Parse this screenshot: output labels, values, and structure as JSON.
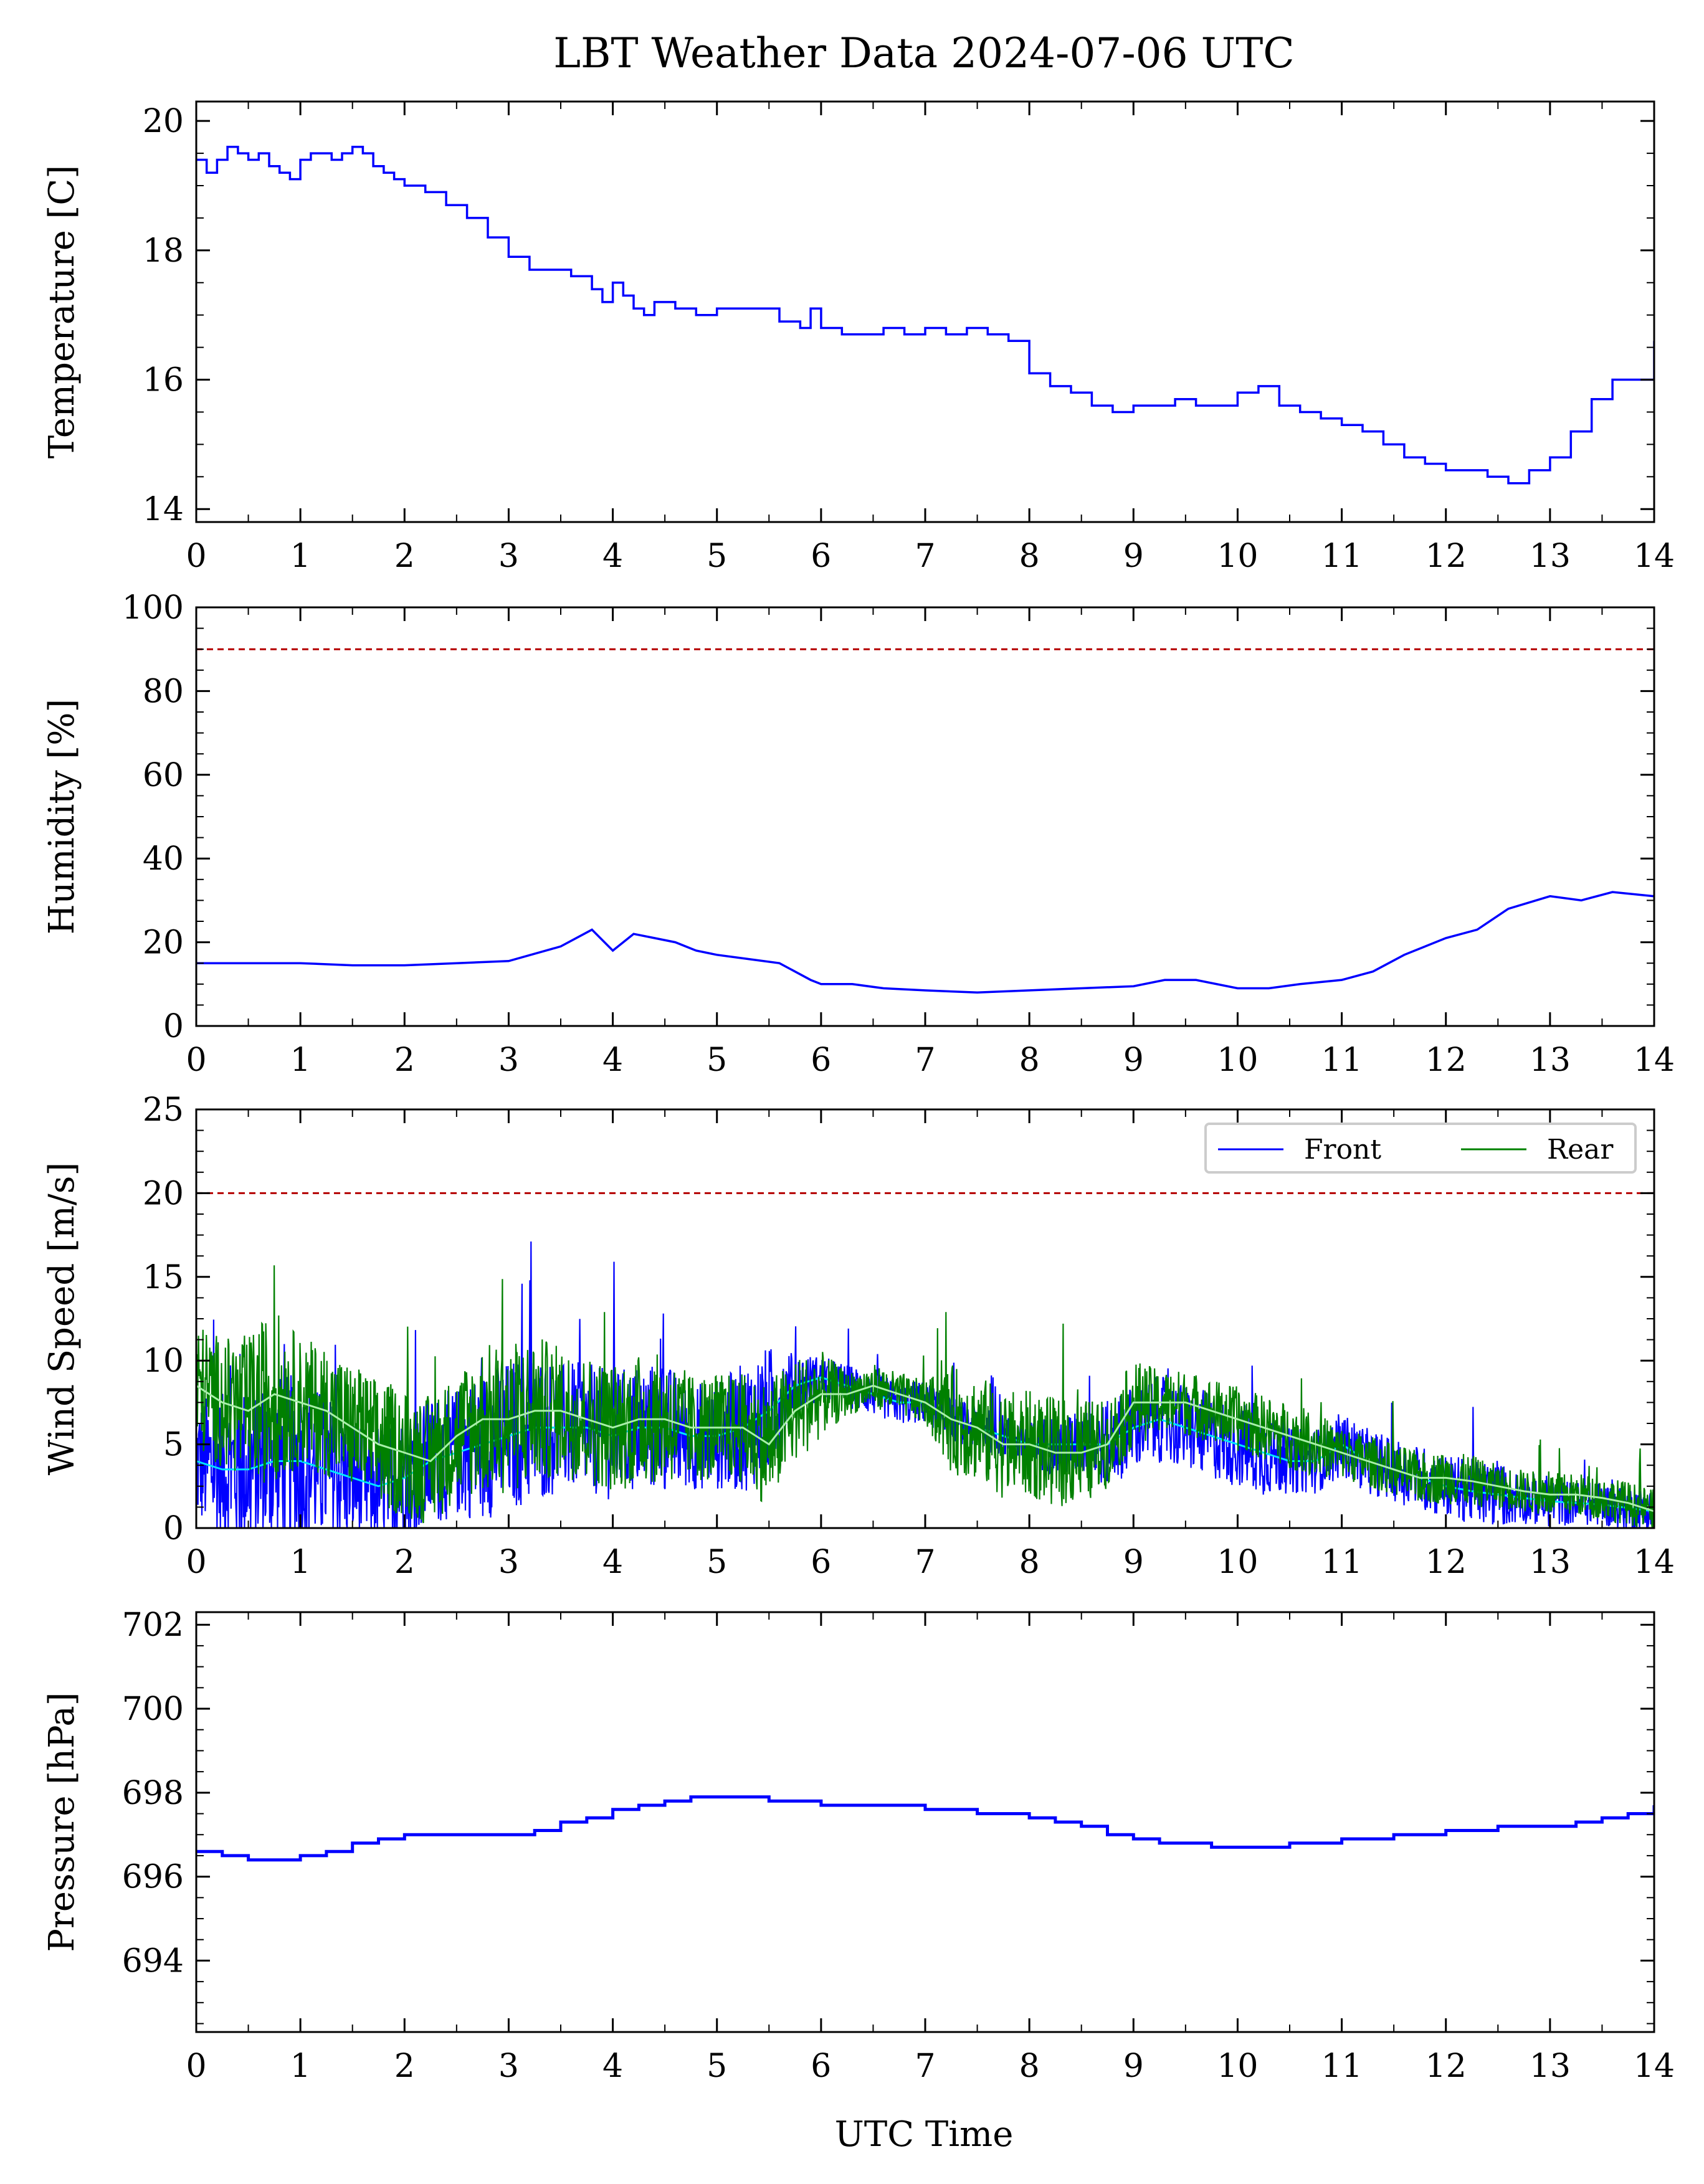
{
  "figure": {
    "title": "LBT Weather Data 2024-07-06 UTC",
    "xlabel": "UTC Time"
  },
  "colors": {
    "front": "#0000ff",
    "rear": "#008000",
    "front_mean": "#00e5ff",
    "rear_mean": "#a8f0a8",
    "threshold": "#b40000",
    "axis": "#000000"
  },
  "chart_data": [
    {
      "type": "line",
      "id": "temperature",
      "ylabel": "Temperature [C]",
      "xlim": [
        0,
        14
      ],
      "ylim": [
        13.8,
        20.3
      ],
      "xticks": [
        0,
        1,
        2,
        3,
        4,
        5,
        6,
        7,
        8,
        9,
        10,
        11,
        12,
        13,
        14
      ],
      "yticks": [
        14,
        16,
        18,
        20
      ],
      "grid": false,
      "step": true,
      "series": [
        {
          "color": "#0000ff",
          "x": [
            0,
            0.1,
            0.2,
            0.3,
            0.4,
            0.5,
            0.6,
            0.7,
            0.8,
            0.9,
            1.0,
            1.1,
            1.2,
            1.3,
            1.4,
            1.5,
            1.6,
            1.7,
            1.8,
            1.9,
            2.0,
            2.2,
            2.4,
            2.6,
            2.8,
            3.0,
            3.2,
            3.4,
            3.6,
            3.8,
            3.9,
            4.0,
            4.1,
            4.2,
            4.3,
            4.4,
            4.6,
            4.8,
            5.0,
            5.2,
            5.4,
            5.6,
            5.8,
            5.9,
            6.0,
            6.2,
            6.4,
            6.6,
            6.8,
            7.0,
            7.2,
            7.4,
            7.6,
            7.8,
            8.0,
            8.2,
            8.4,
            8.6,
            8.8,
            9.0,
            9.2,
            9.4,
            9.6,
            9.8,
            10.0,
            10.2,
            10.4,
            10.6,
            10.8,
            11.0,
            11.2,
            11.4,
            11.6,
            11.8,
            12.0,
            12.2,
            12.4,
            12.6,
            12.8,
            13.0,
            13.2,
            13.4,
            13.6,
            13.8,
            14.0
          ],
          "y": [
            19.4,
            19.2,
            19.4,
            19.6,
            19.5,
            19.4,
            19.5,
            19.3,
            19.2,
            19.1,
            19.4,
            19.5,
            19.5,
            19.4,
            19.5,
            19.6,
            19.5,
            19.3,
            19.2,
            19.1,
            19.0,
            18.9,
            18.7,
            18.5,
            18.2,
            17.9,
            17.7,
            17.7,
            17.6,
            17.4,
            17.2,
            17.5,
            17.3,
            17.1,
            17.0,
            17.2,
            17.1,
            17.0,
            17.1,
            17.1,
            17.1,
            16.9,
            16.8,
            17.1,
            16.8,
            16.7,
            16.7,
            16.8,
            16.7,
            16.8,
            16.7,
            16.8,
            16.7,
            16.6,
            16.1,
            15.9,
            15.8,
            15.6,
            15.5,
            15.6,
            15.6,
            15.7,
            15.6,
            15.6,
            15.8,
            15.9,
            15.6,
            15.5,
            15.4,
            15.3,
            15.2,
            15.0,
            14.8,
            14.7,
            14.6,
            14.6,
            14.5,
            14.4,
            14.6,
            14.8,
            15.2,
            15.7,
            16.0,
            16.0,
            16.6
          ]
        }
      ]
    },
    {
      "type": "line",
      "id": "humidity",
      "ylabel": "Humidity [%]",
      "xlim": [
        0,
        14
      ],
      "ylim": [
        0,
        100
      ],
      "xticks": [
        0,
        1,
        2,
        3,
        4,
        5,
        6,
        7,
        8,
        9,
        10,
        11,
        12,
        13,
        14
      ],
      "yticks": [
        0,
        20,
        40,
        60,
        80,
        100
      ],
      "grid": false,
      "threshold": 90,
      "series": [
        {
          "color": "#0000ff",
          "x": [
            0,
            0.5,
            1.0,
            1.5,
            2.0,
            2.5,
            3.0,
            3.5,
            3.8,
            4.0,
            4.2,
            4.4,
            4.6,
            4.8,
            5.0,
            5.3,
            5.6,
            5.9,
            6.0,
            6.3,
            6.6,
            7.0,
            7.5,
            8.0,
            8.5,
            9.0,
            9.3,
            9.6,
            10.0,
            10.3,
            10.6,
            11.0,
            11.3,
            11.6,
            12.0,
            12.3,
            12.6,
            13.0,
            13.3,
            13.6,
            14.0
          ],
          "y": [
            15,
            15,
            15,
            14.5,
            14.5,
            15,
            15.5,
            19,
            23,
            18,
            22,
            21,
            20,
            18,
            17,
            16,
            15,
            11,
            10,
            10,
            9,
            8.5,
            8,
            8.5,
            9,
            9.5,
            11,
            11,
            9,
            9,
            10,
            11,
            13,
            17,
            21,
            23,
            28,
            31,
            30,
            32,
            31
          ]
        }
      ]
    },
    {
      "type": "line",
      "id": "wind",
      "ylabel": "Wind Speed [m/s]",
      "xlim": [
        0,
        14
      ],
      "ylim": [
        0,
        25
      ],
      "xticks": [
        0,
        1,
        2,
        3,
        4,
        5,
        6,
        7,
        8,
        9,
        10,
        11,
        12,
        13,
        14
      ],
      "yticks": [
        0,
        5,
        10,
        15,
        20,
        25
      ],
      "grid": false,
      "threshold": 20,
      "legend": {
        "position": "top-right",
        "ncol": 2
      },
      "series": [
        {
          "name": "Front",
          "color": "#0000ff",
          "x": [
            0,
            0.25,
            0.5,
            0.75,
            1.0,
            1.25,
            1.5,
            1.75,
            2.0,
            2.25,
            2.5,
            2.75,
            3.0,
            3.25,
            3.5,
            3.75,
            4.0,
            4.25,
            4.5,
            4.75,
            5.0,
            5.25,
            5.5,
            5.75,
            6.0,
            6.25,
            6.5,
            6.75,
            7.0,
            7.25,
            7.5,
            7.75,
            8.0,
            8.25,
            8.5,
            8.75,
            9.0,
            9.25,
            9.5,
            9.75,
            10.0,
            10.25,
            10.5,
            10.75,
            11.0,
            11.25,
            11.5,
            11.75,
            12.0,
            12.25,
            12.5,
            12.75,
            13.0,
            13.25,
            13.5,
            13.75,
            14.0
          ],
          "y": [
            4,
            3.5,
            3.5,
            4,
            4,
            3.5,
            3,
            2.5,
            3,
            4,
            4.5,
            5,
            5.5,
            6,
            6,
            6,
            5.5,
            6,
            6,
            5.5,
            5.5,
            6,
            7,
            8.5,
            9,
            8.5,
            8,
            7.5,
            7.5,
            6.5,
            6,
            5.5,
            5,
            5,
            5,
            5,
            6,
            6.5,
            6,
            5.5,
            5,
            4.5,
            4,
            4,
            5,
            4,
            3.5,
            3,
            2.5,
            2.2,
            2,
            1.8,
            1.6,
            1.5,
            1.4,
            1.2,
            1
          ],
          "spread": [
            3,
            3.5,
            4,
            4,
            4,
            3.5,
            3,
            3,
            3,
            3,
            3,
            3.5,
            3.5,
            3.5,
            3,
            3,
            3,
            3,
            3,
            2.5,
            2.5,
            3,
            3,
            1.5,
            1,
            1,
            1,
            1,
            1,
            1,
            1,
            1,
            1,
            1.5,
            1.5,
            2,
            2,
            2,
            2,
            2,
            2,
            2,
            1.5,
            1.5,
            1.5,
            1.5,
            1.5,
            1.5,
            1.5,
            1.5,
            1.5,
            1.2,
            1.2,
            1,
            1,
            1,
            1
          ]
        },
        {
          "name": "Rear",
          "color": "#008000",
          "x": [
            0,
            0.25,
            0.5,
            0.75,
            1.0,
            1.25,
            1.5,
            1.75,
            2.0,
            2.25,
            2.5,
            2.75,
            3.0,
            3.25,
            3.5,
            3.75,
            4.0,
            4.25,
            4.5,
            4.75,
            5.0,
            5.25,
            5.5,
            5.75,
            6.0,
            6.25,
            6.5,
            6.75,
            7.0,
            7.25,
            7.5,
            7.75,
            8.0,
            8.25,
            8.5,
            8.75,
            9.0,
            9.25,
            9.5,
            9.75,
            10.0,
            10.25,
            10.5,
            10.75,
            11.0,
            11.25,
            11.5,
            11.75,
            12.0,
            12.25,
            12.5,
            12.75,
            13.0,
            13.25,
            13.5,
            13.75,
            14.0
          ],
          "y": [
            8.5,
            7.5,
            7,
            8,
            7.5,
            7,
            6,
            5,
            4.5,
            4,
            5.5,
            6.5,
            6.5,
            7,
            7,
            6.5,
            6,
            6.5,
            6.5,
            6,
            6,
            6,
            5,
            7,
            8,
            8,
            8.5,
            8,
            7.5,
            6.5,
            6,
            5,
            5,
            4.5,
            4.5,
            5,
            7.5,
            7.5,
            7.5,
            7,
            6.5,
            6,
            5.5,
            5,
            4.5,
            4,
            3.5,
            3,
            3,
            2.8,
            2.5,
            2.2,
            2,
            2,
            1.8,
            1.5,
            1
          ],
          "spread": [
            3,
            3,
            3.5,
            4,
            3,
            3,
            3,
            3,
            3,
            3,
            3,
            3.5,
            3.5,
            3.5,
            3,
            3,
            3,
            3,
            3,
            2.5,
            2.5,
            2.5,
            3,
            2.5,
            2,
            1,
            1,
            1,
            1,
            2.5,
            2.5,
            2.5,
            2.5,
            2.5,
            2.5,
            2,
            2,
            1.5,
            1.5,
            1.5,
            1.5,
            1.5,
            1.5,
            1.5,
            1.2,
            1.2,
            1.2,
            1.2,
            1.2,
            1.2,
            1,
            1,
            1,
            1,
            1,
            1,
            1
          ]
        }
      ]
    },
    {
      "type": "line",
      "id": "pressure",
      "ylabel": "Pressure [hPa]",
      "xlim": [
        0,
        14
      ],
      "ylim": [
        692.3,
        702.3
      ],
      "xticks": [
        0,
        1,
        2,
        3,
        4,
        5,
        6,
        7,
        8,
        9,
        10,
        11,
        12,
        13,
        14
      ],
      "yticks": [
        694,
        696,
        698,
        700,
        702
      ],
      "grid": false,
      "step": true,
      "series": [
        {
          "color": "#0000ff",
          "x": [
            0,
            0.25,
            0.5,
            0.75,
            1.0,
            1.25,
            1.5,
            1.75,
            2.0,
            2.25,
            2.5,
            2.75,
            3.0,
            3.25,
            3.5,
            3.75,
            4.0,
            4.25,
            4.5,
            4.75,
            5.0,
            5.25,
            5.5,
            5.75,
            6.0,
            6.5,
            7.0,
            7.5,
            8.0,
            8.25,
            8.5,
            8.75,
            9.0,
            9.25,
            9.5,
            9.75,
            10.0,
            10.25,
            10.5,
            10.75,
            11.0,
            11.5,
            12.0,
            12.5,
            13.0,
            13.25,
            13.5,
            13.75,
            14.0
          ],
          "y": [
            696.6,
            696.5,
            696.4,
            696.4,
            696.5,
            696.6,
            696.8,
            696.9,
            697.0,
            697.0,
            697.0,
            697.0,
            697.0,
            697.1,
            697.3,
            697.4,
            697.6,
            697.7,
            697.8,
            697.9,
            697.9,
            697.9,
            697.8,
            697.8,
            697.7,
            697.7,
            697.6,
            697.5,
            697.4,
            697.3,
            697.2,
            697.0,
            696.9,
            696.8,
            696.8,
            696.7,
            696.7,
            696.7,
            696.8,
            696.8,
            696.9,
            697.0,
            697.1,
            697.2,
            697.2,
            697.3,
            697.4,
            697.5,
            697.7
          ]
        }
      ]
    }
  ]
}
